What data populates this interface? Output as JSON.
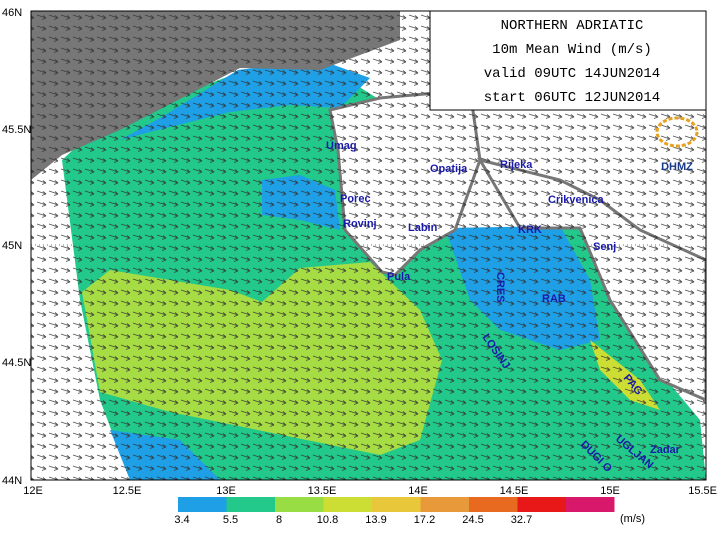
{
  "header": {
    "lines": [
      "NORTHERN ADRIATIC",
      "10m Mean Wind (m/s)",
      "valid 09UTC 14JUN2014",
      "start 06UTC 12JUN2014"
    ]
  },
  "logo": "DHMZ",
  "axes": {
    "lat_ticks": [
      "46N",
      "45.5N",
      "45N",
      "44.5N",
      "44N"
    ],
    "lon_ticks": [
      "12E",
      "12.5E",
      "13E",
      "13.5E",
      "14E",
      "14.5E",
      "15E",
      "15.5E"
    ]
  },
  "places": [
    "Umag",
    "Porec",
    "Rovinj",
    "Pula",
    "Labin",
    "Opatija",
    "Rijeka",
    "Crikvenica",
    "KRK",
    "Senj",
    "CRES",
    "RAB",
    "LOSINJ",
    "PAG",
    "DUGI O",
    "UGLJAN",
    "Zadar"
  ],
  "legend": {
    "levels": [
      3.4,
      5.5,
      8,
      10.8,
      13.9,
      17.2,
      24.5,
      32.7
    ],
    "unit": "(m/s)",
    "colors": [
      "#1e9fe6",
      "#22c98a",
      "#99dd44",
      "#ccdd33",
      "#e8c83a",
      "#e89a3a",
      "#e86a20",
      "#e81818",
      "#d8186a"
    ]
  }
}
